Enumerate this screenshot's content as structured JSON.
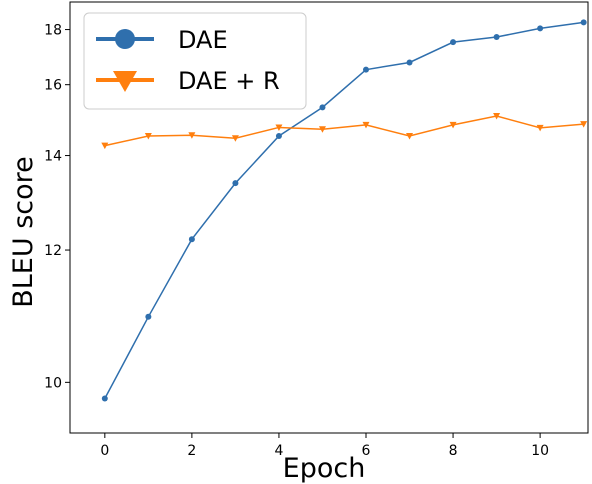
{
  "chart_data": {
    "type": "line",
    "xlabel": "Epoch",
    "ylabel": "BLEU score",
    "xlim": [
      -0.8,
      11.1
    ],
    "ylim": [
      9.4,
      19.2
    ],
    "y_scale": "reciprocal",
    "x_ticks": [
      0,
      2,
      4,
      6,
      8,
      10
    ],
    "y_ticks": [
      10,
      12,
      14,
      16,
      18
    ],
    "grid": false,
    "legend_position": "top-left",
    "x": [
      0,
      1,
      2,
      3,
      4,
      5,
      6,
      7,
      8,
      9,
      10,
      11
    ],
    "series": [
      {
        "name": "DAE",
        "color": "#2f6fad",
        "marker": "circle",
        "values": [
          9.8,
          10.9,
          12.2,
          13.35,
          14.5,
          15.3,
          16.5,
          16.75,
          17.5,
          17.7,
          18.05,
          18.3
        ]
      },
      {
        "name": "DAE + R",
        "color": "#ff7f0e",
        "marker": "triangle-down",
        "values": [
          14.25,
          14.5,
          14.52,
          14.44,
          14.73,
          14.68,
          14.8,
          14.5,
          14.8,
          15.05,
          14.72,
          14.82
        ]
      }
    ]
  }
}
